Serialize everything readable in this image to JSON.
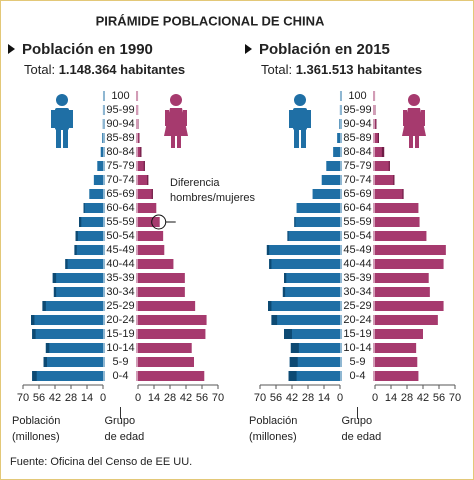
{
  "title": "PIRÁMIDE POBLACIONAL DE CHINA",
  "source": "Fuente: Oficina del Censo de EE UU.",
  "chart_data": [
    {
      "type": "pyramid",
      "subtitle": "Población en 1990",
      "total_label": "Total:",
      "total_value": "1.148.364 habitantes",
      "categories": [
        "100",
        "95-99",
        "90-94",
        "85-89",
        "80-84",
        "75-79",
        "70-74",
        "65-69",
        "60-64",
        "55-59",
        "50-54",
        "45-49",
        "40-44",
        "35-39",
        "30-34",
        "25-29",
        "20-24",
        "15-19",
        "10-14",
        "5-9",
        "0-4"
      ],
      "series": [
        {
          "name": "Hombres",
          "color": "#1f6fa5",
          "diff_color": "#0d4a73",
          "values": [
            0.01,
            0.05,
            0.2,
            0.7,
            2,
            5,
            8,
            12,
            17,
            21,
            24,
            25,
            33,
            44,
            43,
            53,
            63,
            62,
            50,
            52,
            62
          ]
        },
        {
          "name": "Mujeres",
          "color": "#a63a6e",
          "diff_color": "#6e1c45",
          "values": [
            0.02,
            0.1,
            0.4,
            1.2,
            3,
            6,
            9,
            13,
            16,
            19,
            22,
            23,
            31,
            41,
            41,
            50,
            60,
            59,
            47,
            49,
            58
          ]
        }
      ],
      "xlim": [
        0,
        70
      ],
      "xticks": [
        0,
        14,
        28,
        42,
        56,
        70
      ],
      "x_label": [
        "Población",
        "(millones)"
      ],
      "y_label": [
        "Grupo",
        "de edad"
      ],
      "annotation": [
        "Diferencia",
        "hombres/mujeres"
      ],
      "annotation_category": 9
    },
    {
      "type": "pyramid",
      "subtitle": "Población en 2015",
      "total_label": "Total:",
      "total_value": "1.361.513 habitantes",
      "categories": [
        "100",
        "95-99",
        "90-94",
        "85-89",
        "80-84",
        "75-79",
        "70-74",
        "65-69",
        "60-64",
        "55-59",
        "50-54",
        "45-49",
        "40-44",
        "35-39",
        "30-34",
        "25-29",
        "20-24",
        "15-19",
        "10-14",
        "5-9",
        "0-4"
      ],
      "series": [
        {
          "name": "Hombres",
          "color": "#1f6fa5",
          "diff_color": "#0d4a73",
          "values": [
            0.01,
            0.1,
            0.6,
            2.5,
            6,
            12,
            16,
            24,
            38,
            40,
            46,
            64,
            62,
            49,
            50,
            63,
            60,
            49,
            43,
            44,
            45
          ]
        },
        {
          "name": "Mujeres",
          "color": "#a63a6e",
          "diff_color": "#6e1c45",
          "values": [
            0.03,
            0.3,
            1.2,
            3.5,
            8,
            13,
            17,
            25,
            38,
            39,
            45,
            62,
            60,
            47,
            48,
            60,
            55,
            42,
            36,
            37,
            38
          ]
        }
      ],
      "xlim": [
        0,
        70
      ],
      "xticks": [
        0,
        14,
        28,
        42,
        56,
        70
      ],
      "x_label": [
        "Población",
        "(millones)"
      ],
      "y_label": [
        "Grupo",
        "de edad"
      ]
    }
  ]
}
